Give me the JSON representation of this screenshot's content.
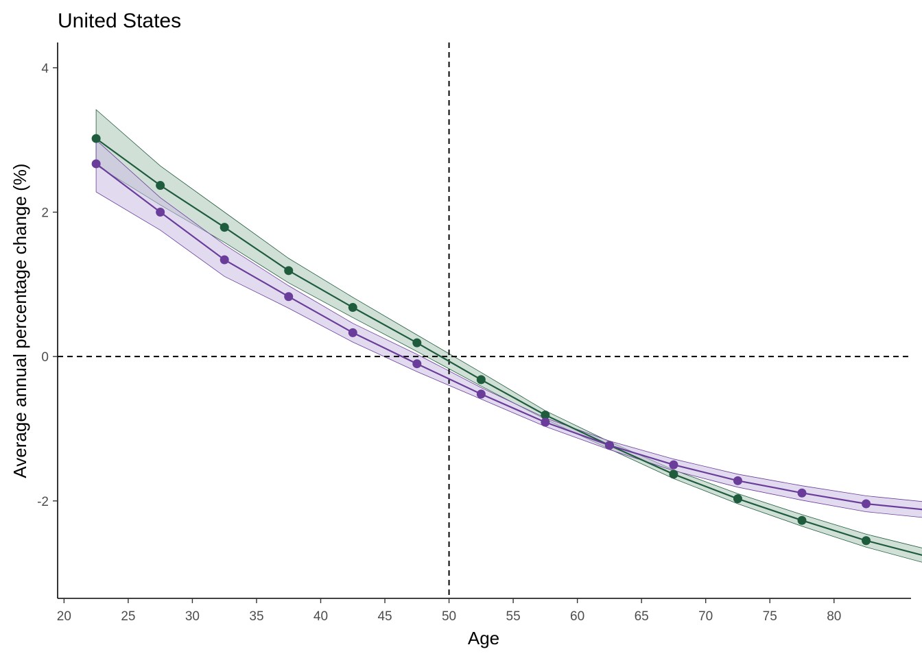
{
  "chart_data": {
    "type": "line",
    "title": "United States",
    "xlabel": "Age",
    "ylabel": "Average annual percentage change (%)",
    "xlim": [
      19.5,
      86
    ],
    "ylim": [
      -3.35,
      4.35
    ],
    "x_ticks": [
      20,
      25,
      30,
      35,
      40,
      45,
      50,
      55,
      60,
      65,
      70,
      75,
      80
    ],
    "y_ticks": [
      -2,
      0,
      2,
      4
    ],
    "reference_lines": {
      "vertical_x": 50,
      "horizontal_y": 0
    },
    "grid": false,
    "legend": "none",
    "x": [
      22.5,
      27.5,
      32.5,
      37.5,
      42.5,
      47.5,
      52.5,
      57.5,
      62.5,
      67.5,
      72.5,
      77.5,
      82.5,
      87.5
    ],
    "series": [
      {
        "color": "#1f5c3e",
        "fill": "#a9c7b6",
        "values": [
          3.02,
          2.37,
          1.79,
          1.19,
          0.68,
          0.19,
          -0.32,
          -0.81,
          -1.23,
          -1.63,
          -1.97,
          -2.27,
          -2.55,
          -2.78
        ],
        "lower": [
          2.65,
          2.1,
          1.58,
          1.02,
          0.54,
          0.07,
          -0.41,
          -0.87,
          -1.28,
          -1.69,
          -2.04,
          -2.35,
          -2.64,
          -2.88
        ],
        "upper": [
          3.42,
          2.64,
          2.0,
          1.36,
          0.82,
          0.3,
          -0.22,
          -0.75,
          -1.18,
          -1.57,
          -1.9,
          -2.19,
          -2.46,
          -2.68
        ]
      },
      {
        "color": "#6a3d9a",
        "fill": "#cbbde3",
        "values": [
          2.67,
          2.0,
          1.34,
          0.83,
          0.33,
          -0.1,
          -0.52,
          -0.91,
          -1.23,
          -1.5,
          -1.72,
          -1.89,
          -2.04,
          -2.13
        ],
        "lower": [
          2.28,
          1.75,
          1.11,
          0.67,
          0.2,
          -0.21,
          -0.59,
          -0.97,
          -1.29,
          -1.58,
          -1.81,
          -1.99,
          -2.15,
          -2.24
        ],
        "upper": [
          3.0,
          2.2,
          1.55,
          0.98,
          0.46,
          0.03,
          -0.43,
          -0.85,
          -1.17,
          -1.42,
          -1.63,
          -1.79,
          -1.93,
          -2.02
        ]
      }
    ]
  }
}
